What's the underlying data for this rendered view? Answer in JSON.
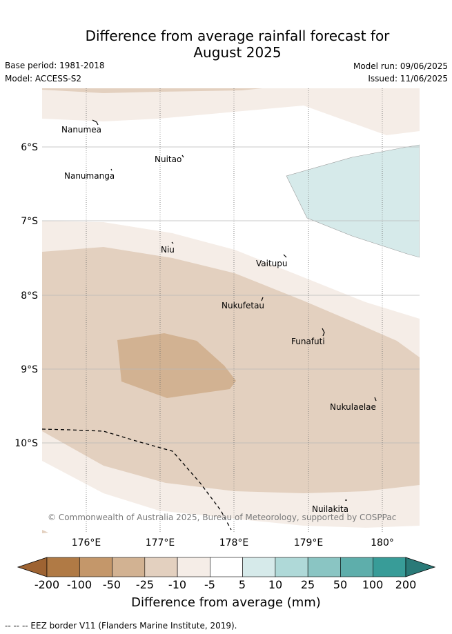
{
  "header": {
    "title_line1": "Difference from average rainfall forecast for",
    "title_line2": "August 2025",
    "base_period": "Base period: 1981-2018",
    "model": "Model: ACCESS-S2",
    "model_run": "Model run: 09/06/2025",
    "issued": "Issued: 11/06/2025"
  },
  "map": {
    "lat_labels": [
      "6°S",
      "7°S",
      "8°S",
      "9°S",
      "10°S"
    ],
    "lon_labels": [
      "176°E",
      "177°E",
      "178°E",
      "179°E",
      "180°"
    ],
    "places": [
      "Nanumea",
      "Nuitao",
      "Nanumanga",
      "Niu",
      "Vaitupu",
      "Nukufetau",
      "Funafuti",
      "Nukulaelae",
      "Nuilakita"
    ],
    "copyright": "© Commonwealth of Australia 2025, Bureau of Meteorology, supported by COSPPac"
  },
  "legend": {
    "title": "Difference from average (mm)",
    "ticks": [
      "-200",
      "-100",
      "-50",
      "-25",
      "-10",
      "-5",
      "5",
      "10",
      "25",
      "50",
      "100",
      "200"
    ],
    "colors": [
      "#9e6332",
      "#b07a45",
      "#c4976a",
      "#d2b292",
      "#e3d0bf",
      "#f5ede7",
      "#ffffff",
      "#d6eaea",
      "#afd9d8",
      "#8ac5c3",
      "#5eaeab",
      "#389c98",
      "#2a7a78"
    ]
  },
  "footer": {
    "eez_note": "-- -- -- EEZ border V11 (Flanders Marine Institute, 2019)."
  }
}
